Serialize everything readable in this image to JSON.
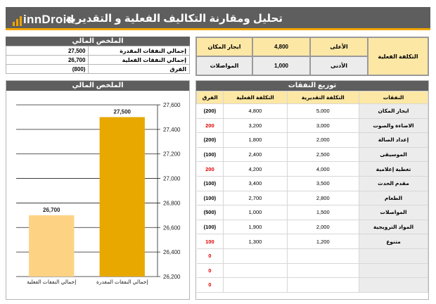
{
  "header": {
    "logo_text": "innDroid",
    "title": "تحليل ومقارنة التكاليف الفعلية و التقديرية"
  },
  "summary": {
    "title": "الملخص المالي",
    "rows": [
      {
        "label": "إجمالي النفقات المقدرة",
        "value": "27,500"
      },
      {
        "label": "إجمالي النفقات الفعلية",
        "value": "26,700"
      },
      {
        "label": "الفرق",
        "value": "(800)"
      }
    ]
  },
  "cost": {
    "label": "التكلفة الفعلية",
    "highest_label": "الأعلى",
    "highest_value": "4,800",
    "highest_item": "ايجار المكان",
    "lowest_label": "الأدنى",
    "lowest_value": "1,000",
    "lowest_item": "المواصلات"
  },
  "chart_panel": {
    "title": "الملخص المالي"
  },
  "chart_data": {
    "type": "bar",
    "categories": [
      "إجمالي النفقات الفعلية",
      "إجمالي النفقات المقدرة"
    ],
    "values": [
      26700,
      27500
    ],
    "value_labels": [
      "26,700",
      "27,500"
    ],
    "colors": [
      "#fdd383",
      "#e8a800"
    ],
    "ylim": [
      26200,
      27600
    ],
    "yticks": [
      26200,
      26400,
      26600,
      26800,
      27000,
      27200,
      27400,
      27600
    ],
    "ytick_labels": [
      "26,200",
      "26,400",
      "26,600",
      "26,800",
      "27,000",
      "27,200",
      "27,400",
      "27,600"
    ],
    "y_axis_side": "right",
    "grid": true
  },
  "distribution": {
    "title": "توزيع النفقات",
    "headers": {
      "item": "النفقات",
      "estimated": "التكلفة التقديرية",
      "actual": "التكلفة الفعلية",
      "diff": "الفرق"
    },
    "rows": [
      {
        "item": "ايجار المكان",
        "estimated": "5,000",
        "actual": "4,800",
        "diff": "(200)",
        "sign": "neg"
      },
      {
        "item": "الاضاءة والصوت",
        "estimated": "3,000",
        "actual": "3,200",
        "diff": "200",
        "sign": "pos"
      },
      {
        "item": "إعداد الصالة",
        "estimated": "2,000",
        "actual": "1,800",
        "diff": "(200)",
        "sign": "neg"
      },
      {
        "item": "الموسيقى",
        "estimated": "2,500",
        "actual": "2,400",
        "diff": "(100)",
        "sign": "neg"
      },
      {
        "item": "تغطية إعلامية",
        "estimated": "4,000",
        "actual": "4,200",
        "diff": "200",
        "sign": "pos"
      },
      {
        "item": "مقدم الحدث",
        "estimated": "3,500",
        "actual": "3,400",
        "diff": "(100)",
        "sign": "neg"
      },
      {
        "item": "الطعام",
        "estimated": "2,800",
        "actual": "2,700",
        "diff": "(100)",
        "sign": "neg"
      },
      {
        "item": "المواصلات",
        "estimated": "1,500",
        "actual": "1,000",
        "diff": "(500)",
        "sign": "neg"
      },
      {
        "item": "المواد الترويجية",
        "estimated": "2,000",
        "actual": "1,900",
        "diff": "(100)",
        "sign": "neg"
      },
      {
        "item": "متنوع",
        "estimated": "1,200",
        "actual": "1,300",
        "diff": "100",
        "sign": "pos"
      },
      {
        "item": "",
        "estimated": "",
        "actual": "",
        "diff": "0",
        "sign": "pos"
      },
      {
        "item": "",
        "estimated": "",
        "actual": "",
        "diff": "0",
        "sign": "pos"
      },
      {
        "item": "",
        "estimated": "",
        "actual": "",
        "diff": "0",
        "sign": "pos"
      }
    ]
  }
}
